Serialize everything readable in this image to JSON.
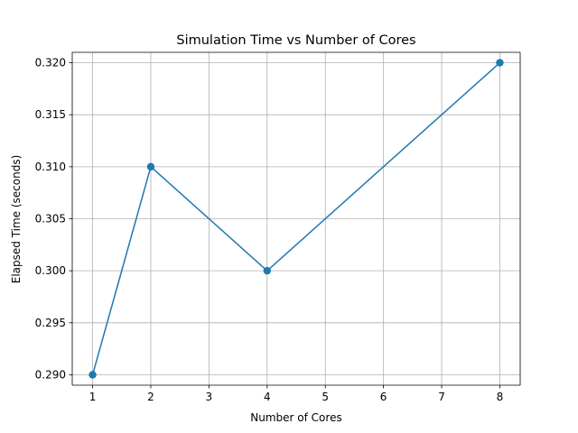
{
  "chart_data": {
    "type": "line",
    "title": "Simulation Time vs Number of Cores",
    "xlabel": "Number of Cores",
    "ylabel": "Elapsed Time (seconds)",
    "x": [
      1,
      2,
      4,
      8
    ],
    "series": [
      {
        "name": "Elapsed Time",
        "values": [
          0.29,
          0.31,
          0.3,
          0.32
        ],
        "color": "#1f77b4",
        "marker": "circle"
      }
    ],
    "xlim": [
      0.65,
      8.35
    ],
    "ylim": [
      0.289,
      0.321
    ],
    "xticks": [
      1,
      2,
      3,
      4,
      5,
      6,
      7,
      8
    ],
    "xtick_labels": [
      "1",
      "2",
      "3",
      "4",
      "5",
      "6",
      "7",
      "8"
    ],
    "yticks": [
      0.29,
      0.295,
      0.3,
      0.305,
      0.31,
      0.315,
      0.32
    ],
    "ytick_labels": [
      "0.290",
      "0.295",
      "0.300",
      "0.305",
      "0.310",
      "0.315",
      "0.320"
    ],
    "grid": true,
    "grid_color": "#b0b0b0",
    "legend": "none"
  }
}
